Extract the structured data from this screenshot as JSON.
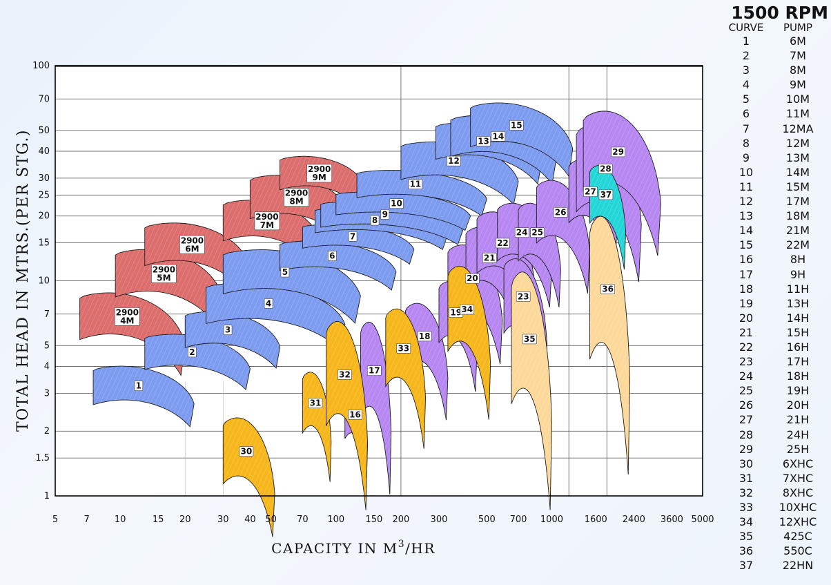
{
  "colors": {
    "blue": "#7d9cf0",
    "purple": "#b787f2",
    "red": "#dc6e6e",
    "orange": "#f6b71c",
    "cream": "#fcd99b",
    "cyan": "#25d6d9"
  },
  "chart_data": {
    "type": "area",
    "xlabel": "CAPACITY IN M",
    "xlabel_sup": "3",
    "xlabel_tail": "/HR",
    "ylabel": "TOTAL HEAD IN MTRS.(PER STG.)",
    "x_scale": "log",
    "y_scale": "log",
    "xlim": [
      5,
      5000
    ],
    "ylim": [
      1,
      100
    ],
    "x_ticks": [
      5,
      7,
      10,
      15,
      20,
      30,
      40,
      50,
      70,
      100,
      150,
      200,
      300,
      500,
      700,
      1000,
      1600,
      2400,
      3600,
      5000
    ],
    "x_tick_labels": [
      "5",
      "7",
      "10",
      "15",
      "20",
      "30",
      "40",
      "50",
      "70",
      "100",
      "150",
      "200",
      "300",
      "500",
      "700",
      "1000",
      "1600",
      "2400",
      "3600",
      "5000"
    ],
    "y_ticks": [
      1,
      1.5,
      2,
      3,
      4,
      5,
      7,
      10,
      15,
      20,
      25,
      30,
      40,
      50,
      70,
      100
    ],
    "y_tick_labels": [
      "1",
      "1.5",
      "2",
      "3",
      "4",
      "5",
      "7",
      "10",
      "15",
      "20",
      "25",
      "30",
      "40",
      "50",
      "70",
      "100"
    ],
    "series": [
      {
        "name": "2900 4M",
        "label": [
          "2900",
          "4M"
        ],
        "color": "red",
        "q": [
          6.5,
          20
        ],
        "h": [
          5.2,
          8.5
        ],
        "drop": 0.52
      },
      {
        "name": "2900 5M",
        "label": [
          "2900",
          "5M"
        ],
        "color": "red",
        "q": [
          9.5,
          30
        ],
        "h": [
          8.2,
          13.5
        ],
        "drop": 0.45
      },
      {
        "name": "2900 6M",
        "label": [
          "2900",
          "6M"
        ],
        "color": "red",
        "q": [
          13,
          40
        ],
        "h": [
          11.5,
          18
        ],
        "drop": 0.45
      },
      {
        "name": "2900 7M",
        "label": [
          "2900",
          "7M"
        ],
        "color": "red",
        "q": [
          30,
          85
        ],
        "h": [
          15,
          23
        ],
        "drop": 0.45
      },
      {
        "name": "2900 8M",
        "label": [
          "2900",
          "8M"
        ],
        "color": "red",
        "q": [
          40,
          120
        ],
        "h": [
          19,
          30
        ],
        "drop": 0.45
      },
      {
        "name": "2900 9M",
        "label": [
          "2900",
          "9M"
        ],
        "color": "red",
        "q": [
          55,
          140
        ],
        "h": [
          26,
          37
        ],
        "drop": 0.45
      },
      {
        "name": "1",
        "label": [
          "1"
        ],
        "color": "blue",
        "q": [
          7.5,
          22
        ],
        "h": [
          2.6,
          3.9
        ],
        "drop": 0.38
      },
      {
        "name": "2",
        "label": [
          "2"
        ],
        "color": "blue",
        "q": [
          13,
          40
        ],
        "h": [
          3.8,
          5.5
        ],
        "drop": 0.38
      },
      {
        "name": "3",
        "label": [
          "3"
        ],
        "color": "blue",
        "q": [
          20,
          55
        ],
        "h": [
          4.8,
          7.0
        ],
        "drop": 0.38
      },
      {
        "name": "4",
        "label": [
          "4"
        ],
        "color": "blue",
        "q": [
          25,
          110
        ],
        "h": [
          6.2,
          9.5
        ],
        "drop": 0.42
      },
      {
        "name": "5",
        "label": [
          "5"
        ],
        "color": "blue",
        "q": [
          30,
          130
        ],
        "h": [
          8.5,
          13.5
        ],
        "drop": 0.45
      },
      {
        "name": "6",
        "label": [
          "6"
        ],
        "color": "blue",
        "q": [
          55,
          190
        ],
        "h": [
          11,
          15
        ],
        "drop": 0.45
      },
      {
        "name": "7",
        "label": [
          "7"
        ],
        "color": "blue",
        "q": [
          70,
          230
        ],
        "h": [
          14,
          18
        ],
        "drop": 0.45
      },
      {
        "name": "8",
        "label": [
          "8"
        ],
        "color": "blue",
        "q": [
          80,
          330
        ],
        "h": [
          16.5,
          21.5
        ],
        "drop": 0.45
      },
      {
        "name": "9",
        "label": [
          "9"
        ],
        "color": "blue",
        "q": [
          85,
          390
        ],
        "h": [
          17.5,
          23
        ],
        "drop": 0.45
      },
      {
        "name": "10",
        "label": [
          "10"
        ],
        "color": "blue",
        "q": [
          100,
          420
        ],
        "h": [
          20,
          25.5
        ],
        "drop": 0.45
      },
      {
        "name": "11",
        "label": [
          "11"
        ],
        "color": "blue",
        "q": [
          125,
          500
        ],
        "h": [
          24,
          32
        ],
        "drop": 0.45
      },
      {
        "name": "12",
        "label": [
          "12"
        ],
        "color": "blue",
        "q": [
          200,
          700
        ],
        "h": [
          29,
          43
        ],
        "drop": 0.45
      },
      {
        "name": "13",
        "label": [
          "13"
        ],
        "color": "blue",
        "q": [
          290,
          900
        ],
        "h": [
          36,
          53
        ],
        "drop": 0.45
      },
      {
        "name": "14",
        "label": [
          "14"
        ],
        "color": "blue",
        "q": [
          340,
          1050
        ],
        "h": [
          37,
          57
        ],
        "drop": 0.45
      },
      {
        "name": "15",
        "label": [
          "15"
        ],
        "color": "blue",
        "q": [
          420,
          1250
        ],
        "h": [
          41,
          65
        ],
        "drop": 0.45
      },
      {
        "name": "16",
        "label": [
          "16"
        ],
        "color": "purple",
        "q": [
          110,
          140
        ],
        "h": [
          1.8,
          3.0
        ],
        "drop": 0.55
      },
      {
        "name": "17",
        "label": [
          "17"
        ],
        "color": "purple",
        "q": [
          130,
          180
        ],
        "h": [
          2.2,
          6.0
        ],
        "drop": 0.55
      },
      {
        "name": "18",
        "label": [
          "18"
        ],
        "color": "purple",
        "q": [
          210,
          330
        ],
        "h": [
          3.8,
          7.5
        ],
        "drop": 0.55
      },
      {
        "name": "19",
        "label": [
          "19"
        ],
        "color": "purple",
        "q": [
          300,
          450
        ],
        "h": [
          5.0,
          9.5
        ],
        "drop": 0.55
      },
      {
        "name": "20",
        "label": [
          "20"
        ],
        "color": "purple",
        "q": [
          330,
          590
        ],
        "h": [
          7.0,
          14.0
        ],
        "drop": 0.55
      },
      {
        "name": "21",
        "label": [
          "21"
        ],
        "color": "purple",
        "q": [
          400,
          700
        ],
        "h": [
          9.0,
          17.0
        ],
        "drop": 0.55
      },
      {
        "name": "22",
        "label": [
          "22"
        ],
        "color": "purple",
        "q": [
          450,
          830
        ],
        "h": [
          10.5,
          20.0
        ],
        "drop": 0.55
      },
      {
        "name": "23",
        "label": [
          "23"
        ],
        "color": "purple",
        "q": [
          600,
          950
        ],
        "h": [
          5.5,
          12.0
        ],
        "drop": 0.55
      },
      {
        "name": "24",
        "label": [
          "24"
        ],
        "color": "purple",
        "q": [
          560,
          1000
        ],
        "h": [
          12.0,
          22.0
        ],
        "drop": 0.55
      },
      {
        "name": "25",
        "label": [
          "25"
        ],
        "color": "purple",
        "q": [
          700,
          1100
        ],
        "h": [
          12.0,
          22.0
        ],
        "drop": 0.55
      },
      {
        "name": "26",
        "label": [
          "26"
        ],
        "color": "purple",
        "q": [
          850,
          1500
        ],
        "h": [
          14.5,
          28.0
        ],
        "drop": 0.55
      },
      {
        "name": "27",
        "label": [
          "27"
        ],
        "color": "purple",
        "q": [
          1200,
          2000
        ],
        "h": [
          18.0,
          35.0
        ],
        "drop": 0.55
      },
      {
        "name": "28",
        "label": [
          "28"
        ],
        "color": "purple",
        "q": [
          1300,
          2600
        ],
        "h": [
          20.0,
          50.0
        ],
        "drop": 0.55
      },
      {
        "name": "29",
        "label": [
          "29"
        ],
        "color": "purple",
        "q": [
          1400,
          3200
        ],
        "h": [
          25.0,
          58.0
        ],
        "drop": 0.55
      },
      {
        "name": "30",
        "label": [
          "30"
        ],
        "color": "orange",
        "q": [
          30,
          52
        ],
        "h": [
          1.1,
          2.2
        ],
        "drop": 0.55
      },
      {
        "name": "31",
        "label": [
          "31"
        ],
        "color": "orange",
        "q": [
          70,
          95
        ],
        "h": [
          1.9,
          3.6
        ],
        "drop": 0.55
      },
      {
        "name": "32",
        "label": [
          "32"
        ],
        "color": "orange",
        "q": [
          90,
          140
        ],
        "h": [
          2.0,
          6.0
        ],
        "drop": 0.55
      },
      {
        "name": "33",
        "label": [
          "33"
        ],
        "color": "orange",
        "q": [
          170,
          260
        ],
        "h": [
          3.1,
          7.0
        ],
        "drop": 0.55
      },
      {
        "name": "34",
        "label": [
          "34"
        ],
        "color": "orange",
        "q": [
          330,
          520
        ],
        "h": [
          4.5,
          11.0
        ],
        "drop": 0.55
      },
      {
        "name": "35",
        "label": [
          "35"
        ],
        "color": "cream",
        "q": [
          650,
          1000
        ],
        "h": [
          2.5,
          10.0
        ],
        "drop": 0.55
      },
      {
        "name": "36",
        "label": [
          "36"
        ],
        "color": "cream",
        "q": [
          1500,
          2300
        ],
        "h": [
          4.0,
          18.0
        ],
        "drop": 0.55
      },
      {
        "name": "37",
        "label": [
          "37"
        ],
        "color": "cyan",
        "q": [
          1500,
          2200
        ],
        "h": [
          18.0,
          33.0
        ],
        "drop": 0.55
      }
    ]
  },
  "legend": {
    "title": "1500 RPM",
    "col_curve": "CURVE",
    "col_pump": "PUMP",
    "rows": [
      {
        "curve": "1",
        "pump": "6M"
      },
      {
        "curve": "2",
        "pump": "7M"
      },
      {
        "curve": "3",
        "pump": "8M"
      },
      {
        "curve": "4",
        "pump": "9M"
      },
      {
        "curve": "5",
        "pump": "10M"
      },
      {
        "curve": "6",
        "pump": "11M"
      },
      {
        "curve": "7",
        "pump": "12MA"
      },
      {
        "curve": "8",
        "pump": "12M"
      },
      {
        "curve": "9",
        "pump": "13M"
      },
      {
        "curve": "10",
        "pump": "14M"
      },
      {
        "curve": "11",
        "pump": "15M"
      },
      {
        "curve": "12",
        "pump": "17M"
      },
      {
        "curve": "13",
        "pump": "18M"
      },
      {
        "curve": "14",
        "pump": "21M"
      },
      {
        "curve": "15",
        "pump": "22M"
      },
      {
        "curve": "16",
        "pump": "8H"
      },
      {
        "curve": "17",
        "pump": "9H"
      },
      {
        "curve": "18",
        "pump": "11H"
      },
      {
        "curve": "19",
        "pump": "13H"
      },
      {
        "curve": "20",
        "pump": "14H"
      },
      {
        "curve": "21",
        "pump": "15H"
      },
      {
        "curve": "22",
        "pump": "16H"
      },
      {
        "curve": "23",
        "pump": "17H"
      },
      {
        "curve": "24",
        "pump": "18H"
      },
      {
        "curve": "25",
        "pump": "19H"
      },
      {
        "curve": "26",
        "pump": "20H"
      },
      {
        "curve": "27",
        "pump": "21H"
      },
      {
        "curve": "28",
        "pump": "24H"
      },
      {
        "curve": "29",
        "pump": "25H"
      },
      {
        "curve": "30",
        "pump": "6XHC"
      },
      {
        "curve": "31",
        "pump": "7XHC"
      },
      {
        "curve": "32",
        "pump": "8XHC"
      },
      {
        "curve": "33",
        "pump": "10XHC"
      },
      {
        "curve": "34",
        "pump": "12XHC"
      },
      {
        "curve": "35",
        "pump": "425C"
      },
      {
        "curve": "36",
        "pump": "550C"
      },
      {
        "curve": "37",
        "pump": "22HN"
      }
    ]
  }
}
